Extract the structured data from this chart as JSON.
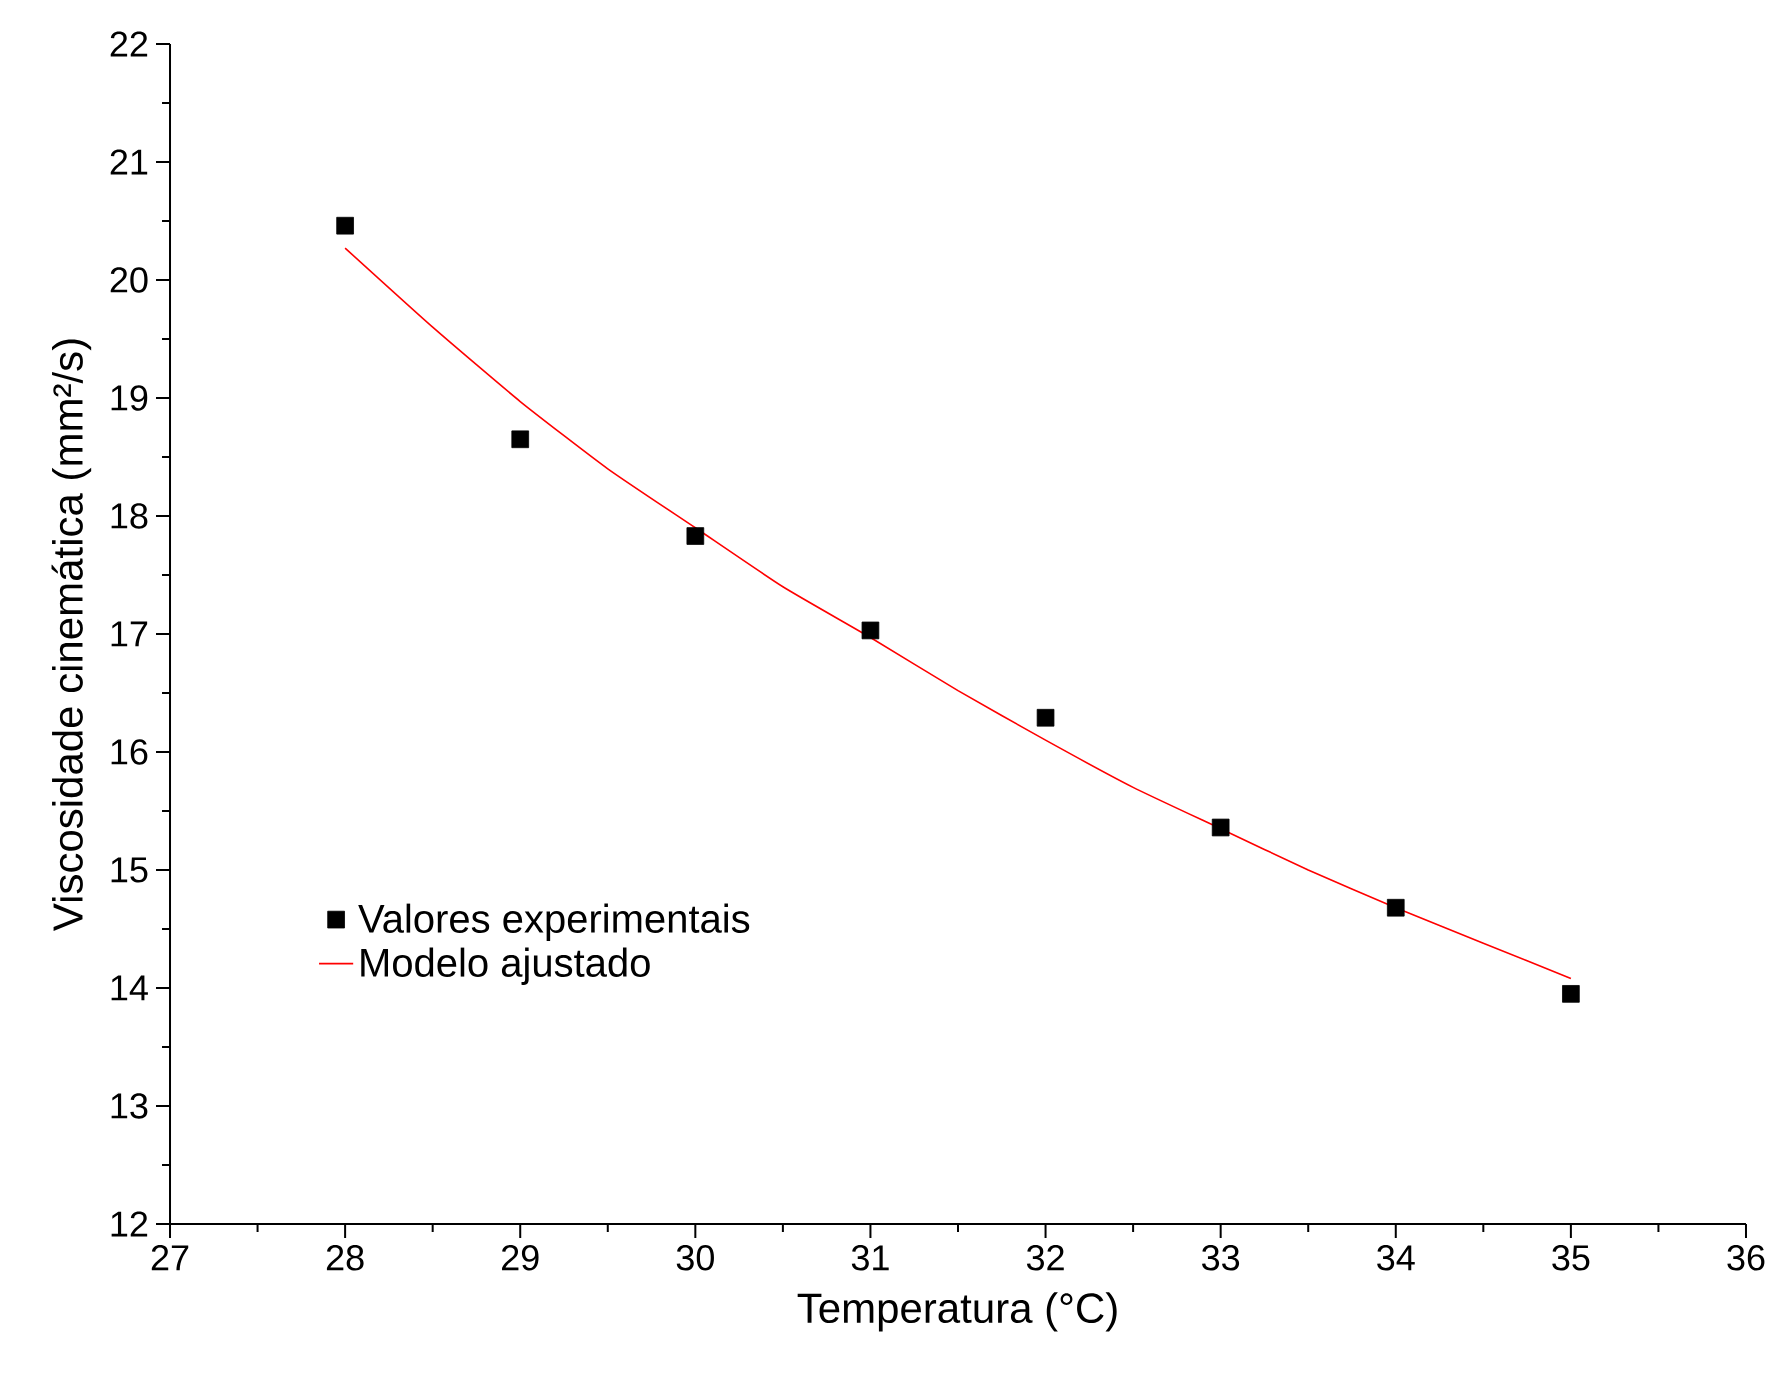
{
  "chart_data": {
    "type": "scatter",
    "xlabel": "Temperatura (°C)",
    "ylabel": "Viscosidade cinemática (mm²/s)",
    "xlim": [
      27,
      36
    ],
    "xticks": [
      27,
      28,
      29,
      30,
      31,
      32,
      33,
      34,
      35,
      36
    ],
    "ylim": [
      12,
      22
    ],
    "yticks": [
      12,
      13,
      14,
      15,
      16,
      17,
      18,
      19,
      20,
      21,
      22
    ],
    "grid": false,
    "legend": "left",
    "series": [
      {
        "name": "Valores experimentais",
        "marker": "square",
        "color": "#000000",
        "x": [
          28,
          29,
          30,
          31,
          32,
          33,
          34,
          35
        ],
        "values": [
          20.46,
          18.65,
          17.83,
          17.03,
          16.29,
          15.36,
          14.68,
          13.95
        ]
      },
      {
        "name": "Modelo ajustado",
        "type": "line",
        "marker": "none",
        "line_style": "solid",
        "color": "#ff0000",
        "x": [
          28,
          28.5,
          29,
          29.5,
          30,
          30.5,
          31,
          31.5,
          32,
          32.5,
          33,
          33.5,
          34,
          34.5,
          35
        ],
        "values": [
          20.27,
          19.6,
          18.97,
          18.4,
          17.9,
          17.4,
          16.97,
          16.52,
          16.1,
          15.7,
          15.35,
          15.0,
          14.68,
          14.38,
          14.08
        ]
      }
    ]
  }
}
